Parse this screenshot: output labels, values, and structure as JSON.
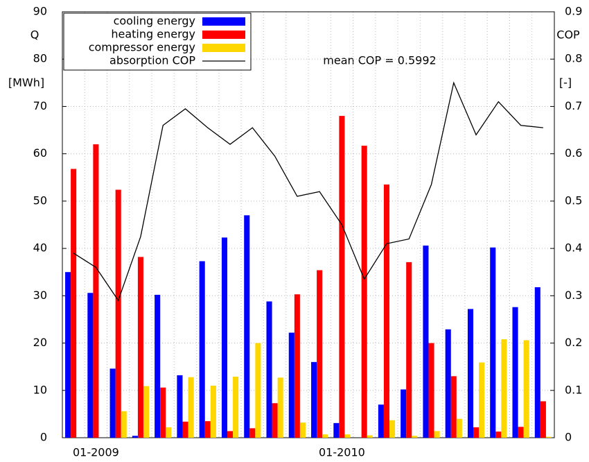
{
  "chart_data": {
    "type": "bar",
    "categories": [
      null,
      "01-2009",
      null,
      null,
      null,
      null,
      null,
      null,
      null,
      null,
      null,
      null,
      "01-2010",
      null,
      null,
      null,
      null,
      null,
      null,
      null,
      null,
      null
    ],
    "series": [
      {
        "name": "cooling energy",
        "color": "#0000ff",
        "values": [
          35,
          30.6,
          14.6,
          0.4,
          30.2,
          13.2,
          37.3,
          42.3,
          47,
          28.8,
          22.2,
          16,
          3.1,
          0,
          7,
          10.2,
          40.6,
          22.9,
          27.2,
          40.2,
          27.6,
          31.8
        ]
      },
      {
        "name": "heating energy",
        "color": "#ff0000",
        "values": [
          56.8,
          62,
          52.4,
          38.2,
          10.6,
          3.4,
          3.5,
          1.4,
          2,
          7.3,
          30.3,
          35.4,
          68,
          61.7,
          53.5,
          37.1,
          20,
          13,
          2.2,
          1.3,
          2.3,
          7.7
        ]
      },
      {
        "name": "compressor energy",
        "color": "#ffd700",
        "values": [
          0,
          0,
          5.6,
          10.9,
          2.2,
          12.8,
          11,
          12.9,
          20,
          12.7,
          3.2,
          0.7,
          0.7,
          0.5,
          3.7,
          0.4,
          1.4,
          4,
          15.9,
          20.8,
          20.6,
          0.2
        ]
      },
      {
        "name": "absorption COP",
        "color": "#000000",
        "type": "line",
        "axis": "y2",
        "values": [
          0.39,
          0.36,
          0.29,
          0.425,
          0.66,
          0.695,
          0.655,
          0.62,
          0.655,
          0.595,
          0.51,
          0.52,
          0.45,
          0.335,
          0.41,
          0.42,
          0.535,
          0.75,
          0.64,
          0.71,
          0.66,
          0.655
        ]
      }
    ],
    "ylabel": "Q",
    "yunit": "[MWh]",
    "y2label": "COP",
    "y2unit": "[-]",
    "annotation": "mean COP = 0.5992",
    "ylim": [
      0,
      90
    ],
    "yticks": [
      0,
      10,
      20,
      30,
      40,
      50,
      60,
      70,
      80,
      90
    ],
    "y2lim": [
      0,
      0.9
    ],
    "y2ticks": [
      0,
      0.1,
      0.2,
      0.3,
      0.4,
      0.5,
      0.6,
      0.7,
      0.8,
      0.9
    ],
    "grid": true,
    "legend": "upper left"
  }
}
